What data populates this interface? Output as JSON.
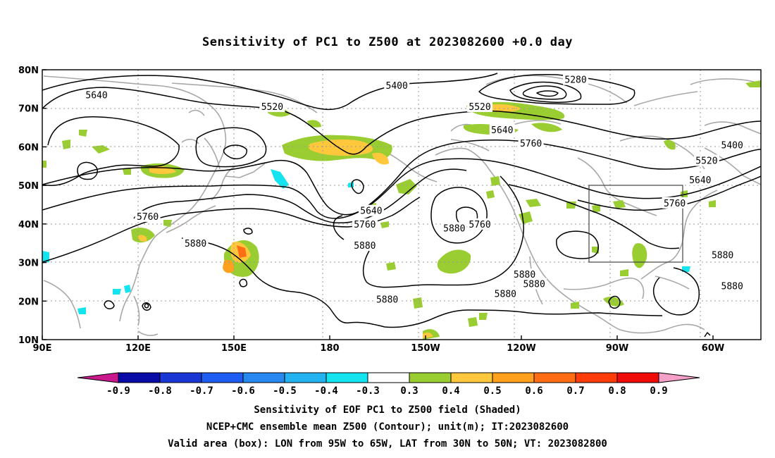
{
  "title": "Sensitivity of PC1 to Z500 at 2023082600 +0.0 day",
  "map": {
    "lon_ticks": [
      {
        "lon": 90,
        "label": "90E"
      },
      {
        "lon": 120,
        "label": "120E"
      },
      {
        "lon": 150,
        "label": "150E"
      },
      {
        "lon": 180,
        "label": "180"
      },
      {
        "lon": 210,
        "label": "150W"
      },
      {
        "lon": 240,
        "label": "120W"
      },
      {
        "lon": 270,
        "label": "90W"
      },
      {
        "lon": 300,
        "label": "60W"
      }
    ],
    "lat_ticks": [
      {
        "lat": 80,
        "label": "80N"
      },
      {
        "lat": 70,
        "label": "70N"
      },
      {
        "lat": 60,
        "label": "60N"
      },
      {
        "lat": 50,
        "label": "50N"
      },
      {
        "lat": 40,
        "label": "40N"
      },
      {
        "lat": 30,
        "label": "30N"
      },
      {
        "lat": 20,
        "label": "20N"
      },
      {
        "lat": 10,
        "label": "10N"
      }
    ],
    "contour_labels": [
      {
        "text": "5640",
        "lon": 107,
        "lat": 73.5
      },
      {
        "text": "5520",
        "lon": 162,
        "lat": 70.5
      },
      {
        "text": "5400",
        "lon": 201,
        "lat": 76
      },
      {
        "text": "5280",
        "lon": 257,
        "lat": 77.5
      },
      {
        "text": "5520",
        "lon": 227,
        "lat": 70.5
      },
      {
        "text": "5640",
        "lon": 234,
        "lat": 64.5
      },
      {
        "text": "5760",
        "lon": 243,
        "lat": 61
      },
      {
        "text": "5400",
        "lon": 306,
        "lat": 60.5
      },
      {
        "text": "5520",
        "lon": 298,
        "lat": 56.5
      },
      {
        "text": "5640",
        "lon": 296,
        "lat": 51.5
      },
      {
        "text": "5760",
        "lon": 288,
        "lat": 45.5
      },
      {
        "text": "5880",
        "lon": 303,
        "lat": 32
      },
      {
        "text": "5880",
        "lon": 306,
        "lat": 24
      },
      {
        "text": "5880",
        "lon": 244,
        "lat": 24.5
      },
      {
        "text": "5880",
        "lon": 235,
        "lat": 22
      },
      {
        "text": "5880",
        "lon": 198,
        "lat": 20.5
      },
      {
        "text": "5880",
        "lon": 219,
        "lat": 39
      },
      {
        "text": "5760",
        "lon": 227,
        "lat": 40
      },
      {
        "text": "5640",
        "lon": 193,
        "lat": 43.5
      },
      {
        "text": "5760",
        "lon": 191,
        "lat": 40
      },
      {
        "text": "5880",
        "lon": 191,
        "lat": 34.5
      },
      {
        "text": "5760",
        "lon": 123,
        "lat": 42
      },
      {
        "text": "5880",
        "lon": 138,
        "lat": 35
      },
      {
        "text": "5880",
        "lon": 241,
        "lat": 27
      }
    ],
    "valid_box": {
      "lon_min": -95,
      "lon_max": -65,
      "lat_min": 30,
      "lat_max": 50
    }
  },
  "colorbar": {
    "labels": [
      "-0.9",
      "-0.8",
      "-0.7",
      "-0.6",
      "-0.5",
      "-0.4",
      "-0.3",
      "0.3",
      "0.4",
      "0.5",
      "0.6",
      "0.7",
      "0.8",
      "0.9"
    ],
    "colors": [
      "#0a0aa8",
      "#1a37d6",
      "#1f5df2",
      "#2788ee",
      "#22b3f0",
      "#14e4f0",
      "#ffffff",
      "#9acd32",
      "#ffc83c",
      "#ffa01e",
      "#ff6e14",
      "#ff3c0a",
      "#f00a0a"
    ],
    "low_arrow_color": "#c8188c",
    "high_arrow_color": "#f4a0c8"
  },
  "captions": [
    "Sensitivity of EOF PC1 to Z500 field (Shaded)",
    "NCEP+CMC ensemble mean Z500 (Contour); unit(m); IT:2023082600",
    "Valid area (box): LON from 95W to 65W, LAT from 30N to 50N; VT: 2023082800"
  ]
}
